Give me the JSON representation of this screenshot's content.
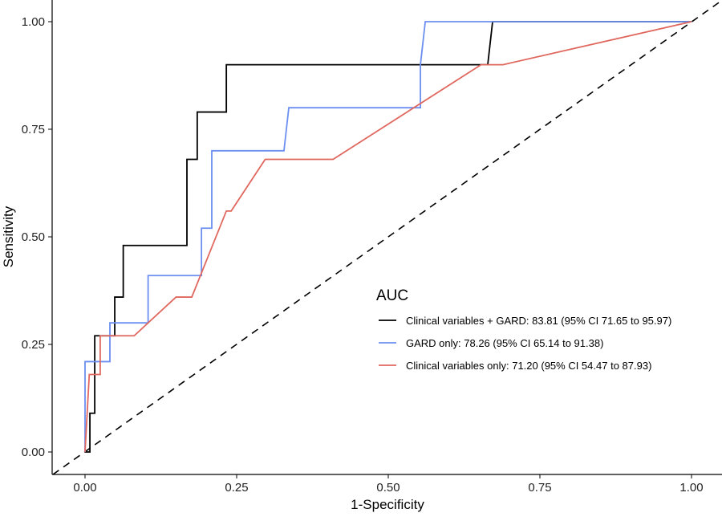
{
  "chart_data": {
    "type": "line",
    "title": "",
    "xlabel": "1-Specificity",
    "ylabel": "Sensitivity",
    "xlim": [
      -0.05,
      1.05
    ],
    "ylim": [
      -0.05,
      1.05
    ],
    "grid": false,
    "x_ticks": [
      "0.00",
      "0.25",
      "0.50",
      "0.75",
      "1.00"
    ],
    "y_ticks": [
      "0.00",
      "0.25",
      "0.50",
      "0.75",
      "1.00"
    ],
    "reference_line": {
      "style": "dashed",
      "from": [
        0,
        0
      ],
      "to": [
        1,
        1
      ],
      "color": "#000000"
    },
    "legend": {
      "title": "AUC",
      "position": "right",
      "entries": [
        "Clinical variables + GARD: 83.81 (95% CI 71.65 to 95.97)",
        "GARD only: 78.26 (95% CI 65.14 to 91.38)",
        "Clinical variables only: 71.20 (95% CI 54.47 to 87.93)"
      ]
    },
    "series": [
      {
        "name": "Clinical variables + GARD",
        "color": "#000000",
        "points": [
          [
            0,
            0
          ],
          [
            0.008,
            0
          ],
          [
            0.008,
            0.09
          ],
          [
            0.016,
            0.09
          ],
          [
            0.016,
            0.27
          ],
          [
            0.049,
            0.27
          ],
          [
            0.049,
            0.36
          ],
          [
            0.063,
            0.36
          ],
          [
            0.063,
            0.48
          ],
          [
            0.168,
            0.48
          ],
          [
            0.168,
            0.68
          ],
          [
            0.185,
            0.68
          ],
          [
            0.185,
            0.79
          ],
          [
            0.233,
            0.79
          ],
          [
            0.233,
            0.9
          ],
          [
            0.664,
            0.9
          ],
          [
            0.672,
            1.0
          ],
          [
            1,
            1
          ]
        ]
      },
      {
        "name": "GARD only",
        "color": "#6b8ff0",
        "points": [
          [
            0,
            0
          ],
          [
            0,
            0.21
          ],
          [
            0.041,
            0.21
          ],
          [
            0.041,
            0.3
          ],
          [
            0.104,
            0.3
          ],
          [
            0.104,
            0.41
          ],
          [
            0.192,
            0.41
          ],
          [
            0.192,
            0.52
          ],
          [
            0.209,
            0.52
          ],
          [
            0.209,
            0.7
          ],
          [
            0.328,
            0.7
          ],
          [
            0.336,
            0.8
          ],
          [
            0.553,
            0.8
          ],
          [
            0.553,
            0.9
          ],
          [
            0.561,
            1.0
          ],
          [
            1,
            1
          ]
        ]
      },
      {
        "name": "Clinical variables only",
        "color": "#e0675e",
        "points": [
          [
            0,
            0
          ],
          [
            0.007,
            0.18
          ],
          [
            0.025,
            0.18
          ],
          [
            0.025,
            0.27
          ],
          [
            0.081,
            0.27
          ],
          [
            0.15,
            0.36
          ],
          [
            0.176,
            0.36
          ],
          [
            0.233,
            0.56
          ],
          [
            0.241,
            0.56
          ],
          [
            0.297,
            0.68
          ],
          [
            0.409,
            0.68
          ],
          [
            0.653,
            0.9
          ],
          [
            0.689,
            0.9
          ],
          [
            1,
            1
          ]
        ]
      }
    ]
  }
}
